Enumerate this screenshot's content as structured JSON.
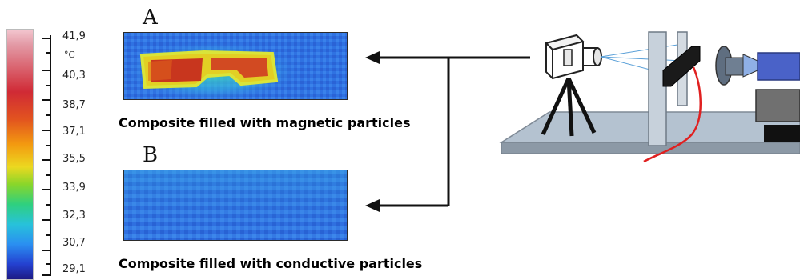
{
  "colorbar": {
    "unit": "°C",
    "ticks": [
      "41,9",
      "40,3",
      "38,7",
      "37,1",
      "35,5",
      "33,9",
      "32,3",
      "30,7",
      "29,1"
    ]
  },
  "panels": [
    {
      "letter": "A",
      "caption": "Composite filled with magnetic particles"
    },
    {
      "letter": "B",
      "caption": "Composite filled with conductive particles"
    }
  ],
  "colors": {
    "background_blue": "#2f6fe0",
    "hot_core": "#c8361e",
    "hot_ring": "#f0d22a",
    "heating_wire": "#e02020",
    "platform": "#a9b8c8",
    "motor_blue": "#4a62c8"
  }
}
